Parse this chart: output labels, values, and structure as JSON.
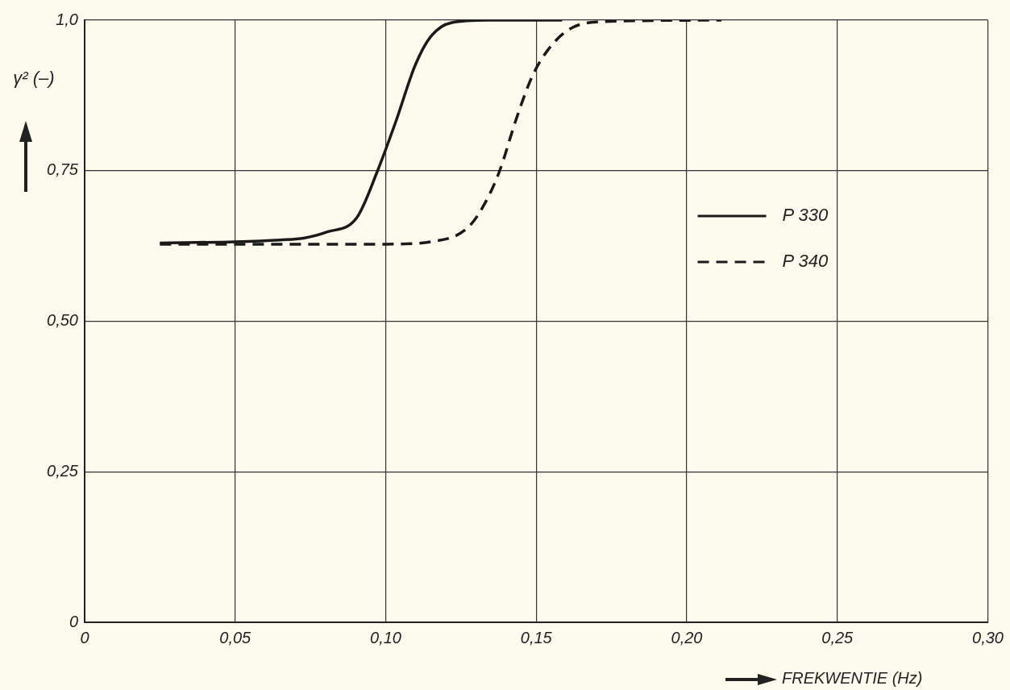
{
  "chart_data": {
    "type": "line",
    "xlabel": "FREKWENTIE (Hz)",
    "ylabel": "γ² (–)",
    "xlim": [
      0,
      0.3
    ],
    "ylim": [
      0,
      1
    ],
    "xticks": [
      {
        "value": 0,
        "label": "0"
      },
      {
        "value": 0.05,
        "label": "0,05"
      },
      {
        "value": 0.1,
        "label": "0,10"
      },
      {
        "value": 0.15,
        "label": "0,15"
      },
      {
        "value": 0.2,
        "label": "0,20"
      },
      {
        "value": 0.25,
        "label": "0,25"
      },
      {
        "value": 0.3,
        "label": "0,30"
      }
    ],
    "yticks": [
      {
        "value": 0,
        "label": "0"
      },
      {
        "value": 0.25,
        "label": "0,25"
      },
      {
        "value": 0.5,
        "label": "0,50"
      },
      {
        "value": 0.75,
        "label": "0,75"
      },
      {
        "value": 1,
        "label": "1,0"
      }
    ],
    "grid": true,
    "legend": "right",
    "marker": "none",
    "series": [
      {
        "name": "P 330",
        "color": "#1a1a1a",
        "line_style": "solid",
        "x": [
          0.025,
          0.05,
          0.065,
          0.0727,
          0.0804,
          0.0904,
          0.0973,
          0.1036,
          0.1097,
          0.115,
          0.122,
          0.134,
          0.1586
        ],
        "values": [
          0.63,
          0.632,
          0.635,
          0.638,
          0.648,
          0.672,
          0.75,
          0.835,
          0.924,
          0.973,
          0.996,
          1.0,
          1.0
        ]
      },
      {
        "name": "P 340",
        "color": "#1a1a1a",
        "line_style": "dashed",
        "x": [
          0.025,
          0.05,
          0.1,
          0.115,
          0.1274,
          0.1335,
          0.138,
          0.1433,
          0.1486,
          0.1538,
          0.1607,
          0.17,
          0.2115
        ],
        "values": [
          0.628,
          0.628,
          0.628,
          0.632,
          0.656,
          0.701,
          0.752,
          0.835,
          0.906,
          0.95,
          0.984,
          0.997,
          1.0
        ]
      }
    ]
  }
}
